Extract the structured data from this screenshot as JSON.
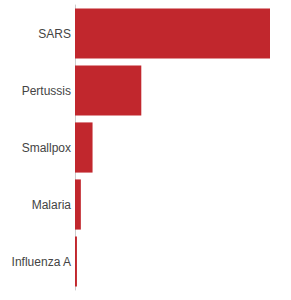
{
  "chart_data": {
    "type": "bar",
    "orientation": "horizontal",
    "categories": [
      "SARS",
      "Pertussis",
      "Smallpox",
      "Malaria",
      "Influenza A"
    ],
    "values": [
      100,
      34,
      9,
      3,
      1
    ],
    "color": "#c1272d",
    "xlim": [
      0,
      100
    ],
    "tick_labels": "y",
    "grid": false
  }
}
